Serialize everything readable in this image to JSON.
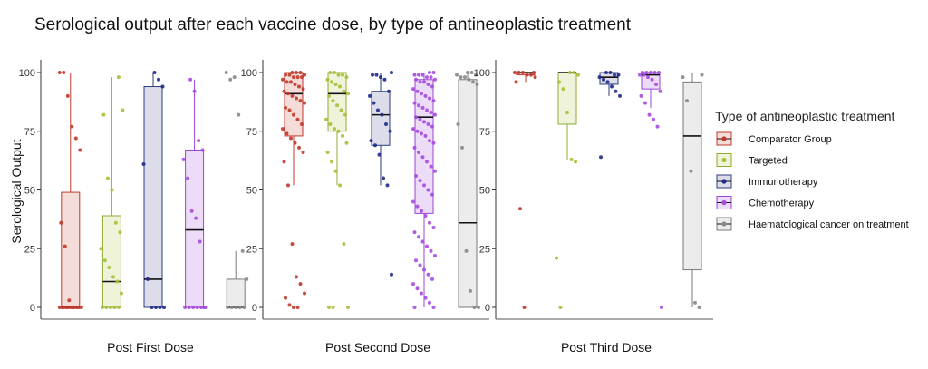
{
  "chart_data": {
    "type": "box",
    "title": "Serological output after each vaccine dose, by type of antineoplastic treatment",
    "ylabel": "Serological Output",
    "xlabel": "",
    "ylim": [
      0,
      100
    ],
    "y_ticks": [
      "0",
      "25",
      "50",
      "75",
      "100"
    ],
    "grid": false,
    "legend": {
      "title": "Type of antineoplastic treatment",
      "placement": "right"
    },
    "series": [
      {
        "name": "Comparator Group",
        "fill": "#f5dcd8",
        "stroke": "#c0392b",
        "point": "#c0392b"
      },
      {
        "name": "Targeted",
        "fill": "#eef3da",
        "stroke": "#8fae2f",
        "point": "#a5c03a"
      },
      {
        "name": "Immunotherapy",
        "fill": "#dcdcea",
        "stroke": "#2c3e7a",
        "point": "#1f2a8a"
      },
      {
        "name": "Chemotherapy",
        "fill": "#ecdcf8",
        "stroke": "#9b45d6",
        "point": "#a64be0"
      },
      {
        "name": "Haematological cancer on treatment",
        "fill": "#ececec",
        "stroke": "#7a7a7a",
        "point": "#888888"
      }
    ],
    "panels": [
      {
        "label": "Post First Dose",
        "boxes": [
          {
            "min": 0,
            "q1": 0,
            "median": 0,
            "q3": 49,
            "max": 100,
            "points": [
              100,
              100,
              90,
              77,
              72,
              67,
              36,
              26,
              3,
              0,
              0,
              0,
              0,
              0,
              0,
              0,
              0,
              0,
              0,
              0
            ]
          },
          {
            "min": 0,
            "q1": 0,
            "median": 11,
            "q3": 39,
            "max": 98,
            "points": [
              98,
              84,
              82,
              55,
              50,
              36,
              32,
              25,
              20,
              17,
              13,
              11,
              6,
              0,
              0,
              0,
              0,
              0
            ]
          },
          {
            "min": 0,
            "q1": 0,
            "median": 12,
            "q3": 94,
            "max": 100,
            "points": [
              100,
              97,
              94,
              61,
              12,
              0,
              0,
              0,
              0
            ]
          },
          {
            "min": 0,
            "q1": 0,
            "median": 33,
            "q3": 67,
            "max": 97,
            "points": [
              97,
              92,
              71,
              67,
              63,
              55,
              41,
              38,
              28,
              0,
              0,
              0,
              0,
              0,
              0,
              0
            ]
          },
          {
            "min": 0,
            "q1": 0,
            "median": 0,
            "q3": 12,
            "max": 24,
            "points": [
              100,
              97,
              98,
              82,
              24,
              12,
              0,
              0,
              0,
              0,
              0
            ]
          }
        ]
      },
      {
        "label": "Post Second Dose",
        "boxes": [
          {
            "min": 52,
            "q1": 73,
            "median": 91,
            "q3": 100,
            "max": 100,
            "points": [
              100,
              100,
              100,
              99,
              99,
              99,
              98,
              98,
              98,
              97,
              96,
              96,
              95,
              94,
              93,
              92,
              91,
              90,
              89,
              88,
              87,
              85,
              84,
              82,
              80,
              78,
              76,
              74,
              72,
              70,
              68,
              66,
              62,
              52,
              27,
              13,
              10,
              6,
              4,
              1,
              0,
              0
            ]
          },
          {
            "min": 52,
            "q1": 75,
            "median": 91,
            "q3": 100,
            "max": 100,
            "points": [
              100,
              100,
              99,
              99,
              98,
              97,
              96,
              95,
              94,
              92,
              91,
              90,
              88,
              86,
              84,
              82,
              80,
              78,
              76,
              75,
              73,
              70,
              66,
              62,
              58,
              52,
              27,
              0,
              0,
              0
            ]
          },
          {
            "min": 52,
            "q1": 69,
            "median": 82,
            "q3": 92,
            "max": 100,
            "points": [
              100,
              99,
              99,
              98,
              97,
              92,
              90,
              87,
              84,
              82,
              78,
              75,
              71,
              69,
              65,
              55,
              52,
              14
            ]
          },
          {
            "min": 0,
            "q1": 40,
            "median": 81,
            "q3": 97,
            "max": 100,
            "points": [
              100,
              100,
              99,
              99,
              99,
              98,
              98,
              97,
              97,
              96,
              96,
              95,
              94,
              93,
              92,
              91,
              90,
              89,
              88,
              87,
              86,
              85,
              84,
              83,
              82,
              81,
              80,
              79,
              78,
              77,
              76,
              75,
              74,
              73,
              71,
              70,
              68,
              66,
              64,
              62,
              60,
              58,
              56,
              54,
              52,
              50,
              48,
              45,
              43,
              41,
              39,
              36,
              34,
              32,
              30,
              28,
              26,
              24,
              22,
              20,
              18,
              16,
              14,
              12,
              10,
              8,
              6,
              4,
              2,
              0,
              0
            ]
          },
          {
            "min": 0,
            "q1": 0,
            "median": 36,
            "q3": 97,
            "max": 100,
            "points": [
              100,
              100,
              99,
              99,
              98,
              98,
              97,
              96,
              95,
              78,
              68,
              24,
              7,
              0,
              0
            ]
          }
        ]
      },
      {
        "label": "Post Third Dose",
        "boxes": [
          {
            "min": 96,
            "q1": 99,
            "median": 100,
            "q3": 100,
            "max": 100,
            "points": [
              100,
              100,
              100,
              100,
              99,
              99,
              98,
              96,
              42,
              0
            ]
          },
          {
            "min": 63,
            "q1": 78,
            "median": 100,
            "q3": 100,
            "max": 100,
            "points": [
              100,
              100,
              99,
              96,
              93,
              83,
              63,
              62,
              21,
              0
            ]
          },
          {
            "min": 90,
            "q1": 95,
            "median": 98,
            "q3": 100,
            "max": 100,
            "points": [
              100,
              100,
              99,
              99,
              98,
              97,
              96,
              94,
              92,
              90,
              64
            ]
          },
          {
            "min": 85,
            "q1": 93,
            "median": 99,
            "q3": 100,
            "max": 100,
            "points": [
              100,
              100,
              100,
              100,
              100,
              99,
              99,
              98,
              97,
              95,
              92,
              90,
              87,
              82,
              80,
              77,
              0
            ]
          },
          {
            "min": 0,
            "q1": 16,
            "median": 73,
            "q3": 96,
            "max": 100,
            "points": [
              99,
              98,
              88,
              58,
              2,
              0
            ]
          }
        ]
      }
    ]
  }
}
